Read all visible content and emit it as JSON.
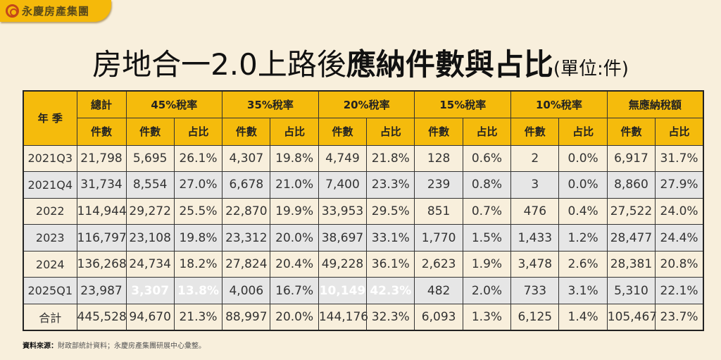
{
  "brand": {
    "name": "永慶房產集團",
    "colors": {
      "primary": "#f5bb0c",
      "highlight": "#e63232"
    }
  },
  "title": {
    "part1": "房地合一2.0上路後",
    "part2": "應納件數與占比",
    "unit": "(單位:件)"
  },
  "table": {
    "corner": "年 季",
    "groups": [
      "總計",
      "45%稅率",
      "35%稅率",
      "20%稅率",
      "15%稅率",
      "10%稅率",
      "無應納稅額"
    ],
    "sub_count": "件數",
    "sub_ratio": "占比",
    "rows": [
      {
        "label": "2021Q3",
        "cells": [
          "21,798",
          "5,695",
          "26.1%",
          "4,307",
          "19.8%",
          "4,749",
          "21.8%",
          "128",
          "0.6%",
          "2",
          "0.0%",
          "6,917",
          "31.7%"
        ]
      },
      {
        "label": "2021Q4",
        "cells": [
          "31,734",
          "8,554",
          "27.0%",
          "6,678",
          "21.0%",
          "7,400",
          "23.3%",
          "239",
          "0.8%",
          "3",
          "0.0%",
          "8,860",
          "27.9%"
        ]
      },
      {
        "label": "2022",
        "cells": [
          "114,944",
          "29,272",
          "25.5%",
          "22,870",
          "19.9%",
          "33,953",
          "29.5%",
          "851",
          "0.7%",
          "476",
          "0.4%",
          "27,522",
          "24.0%"
        ]
      },
      {
        "label": "2023",
        "cells": [
          "116,797",
          "23,108",
          "19.8%",
          "23,312",
          "20.0%",
          "38,697",
          "33.1%",
          "1,770",
          "1.5%",
          "1,433",
          "1.2%",
          "28,477",
          "24.4%"
        ]
      },
      {
        "label": "2024",
        "cells": [
          "136,268",
          "24,734",
          "18.2%",
          "27,824",
          "20.4%",
          "49,228",
          "36.1%",
          "2,623",
          "1.9%",
          "3,478",
          "2.6%",
          "28,381",
          "20.8%"
        ]
      },
      {
        "label": "2025Q1",
        "cells": [
          "23,987",
          "3,307",
          "13.8%",
          "4,006",
          "16.7%",
          "10,149",
          "42.3%",
          "482",
          "2.0%",
          "733",
          "3.1%",
          "5,310",
          "22.1%"
        ],
        "highlighted": [
          1,
          2,
          5,
          6
        ]
      },
      {
        "label": "合計",
        "cells": [
          "445,528",
          "94,670",
          "21.3%",
          "88,997",
          "20.0%",
          "144,176",
          "32.3%",
          "6,093",
          "1.3%",
          "6,125",
          "1.4%",
          "105,467",
          "23.7%"
        ]
      }
    ]
  },
  "source": {
    "label": "資料來源：",
    "text": "財政部統計資料；永慶房產集團研展中心彙整。"
  }
}
